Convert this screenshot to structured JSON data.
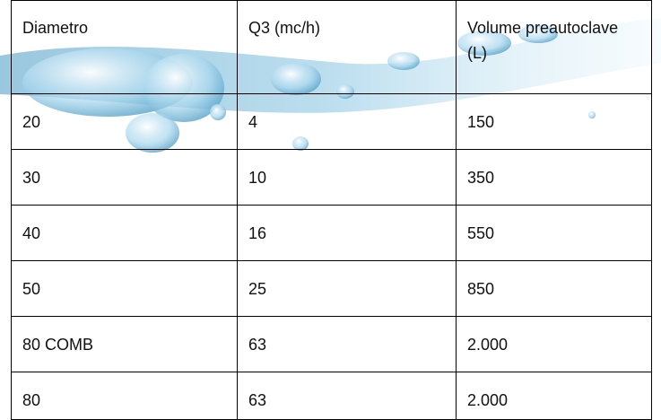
{
  "table": {
    "header": [
      "Diametro",
      "Q3 (mc/h)",
      "Volume preautoclave (L)"
    ],
    "rows": [
      [
        "20",
        "4",
        "150"
      ],
      [
        "30",
        "10",
        "350"
      ],
      [
        "40",
        "16",
        "550"
      ],
      [
        "50",
        "25",
        "850"
      ],
      [
        "80 COMB",
        "63",
        "2.000"
      ],
      [
        "80",
        "63",
        "2.000"
      ]
    ]
  }
}
